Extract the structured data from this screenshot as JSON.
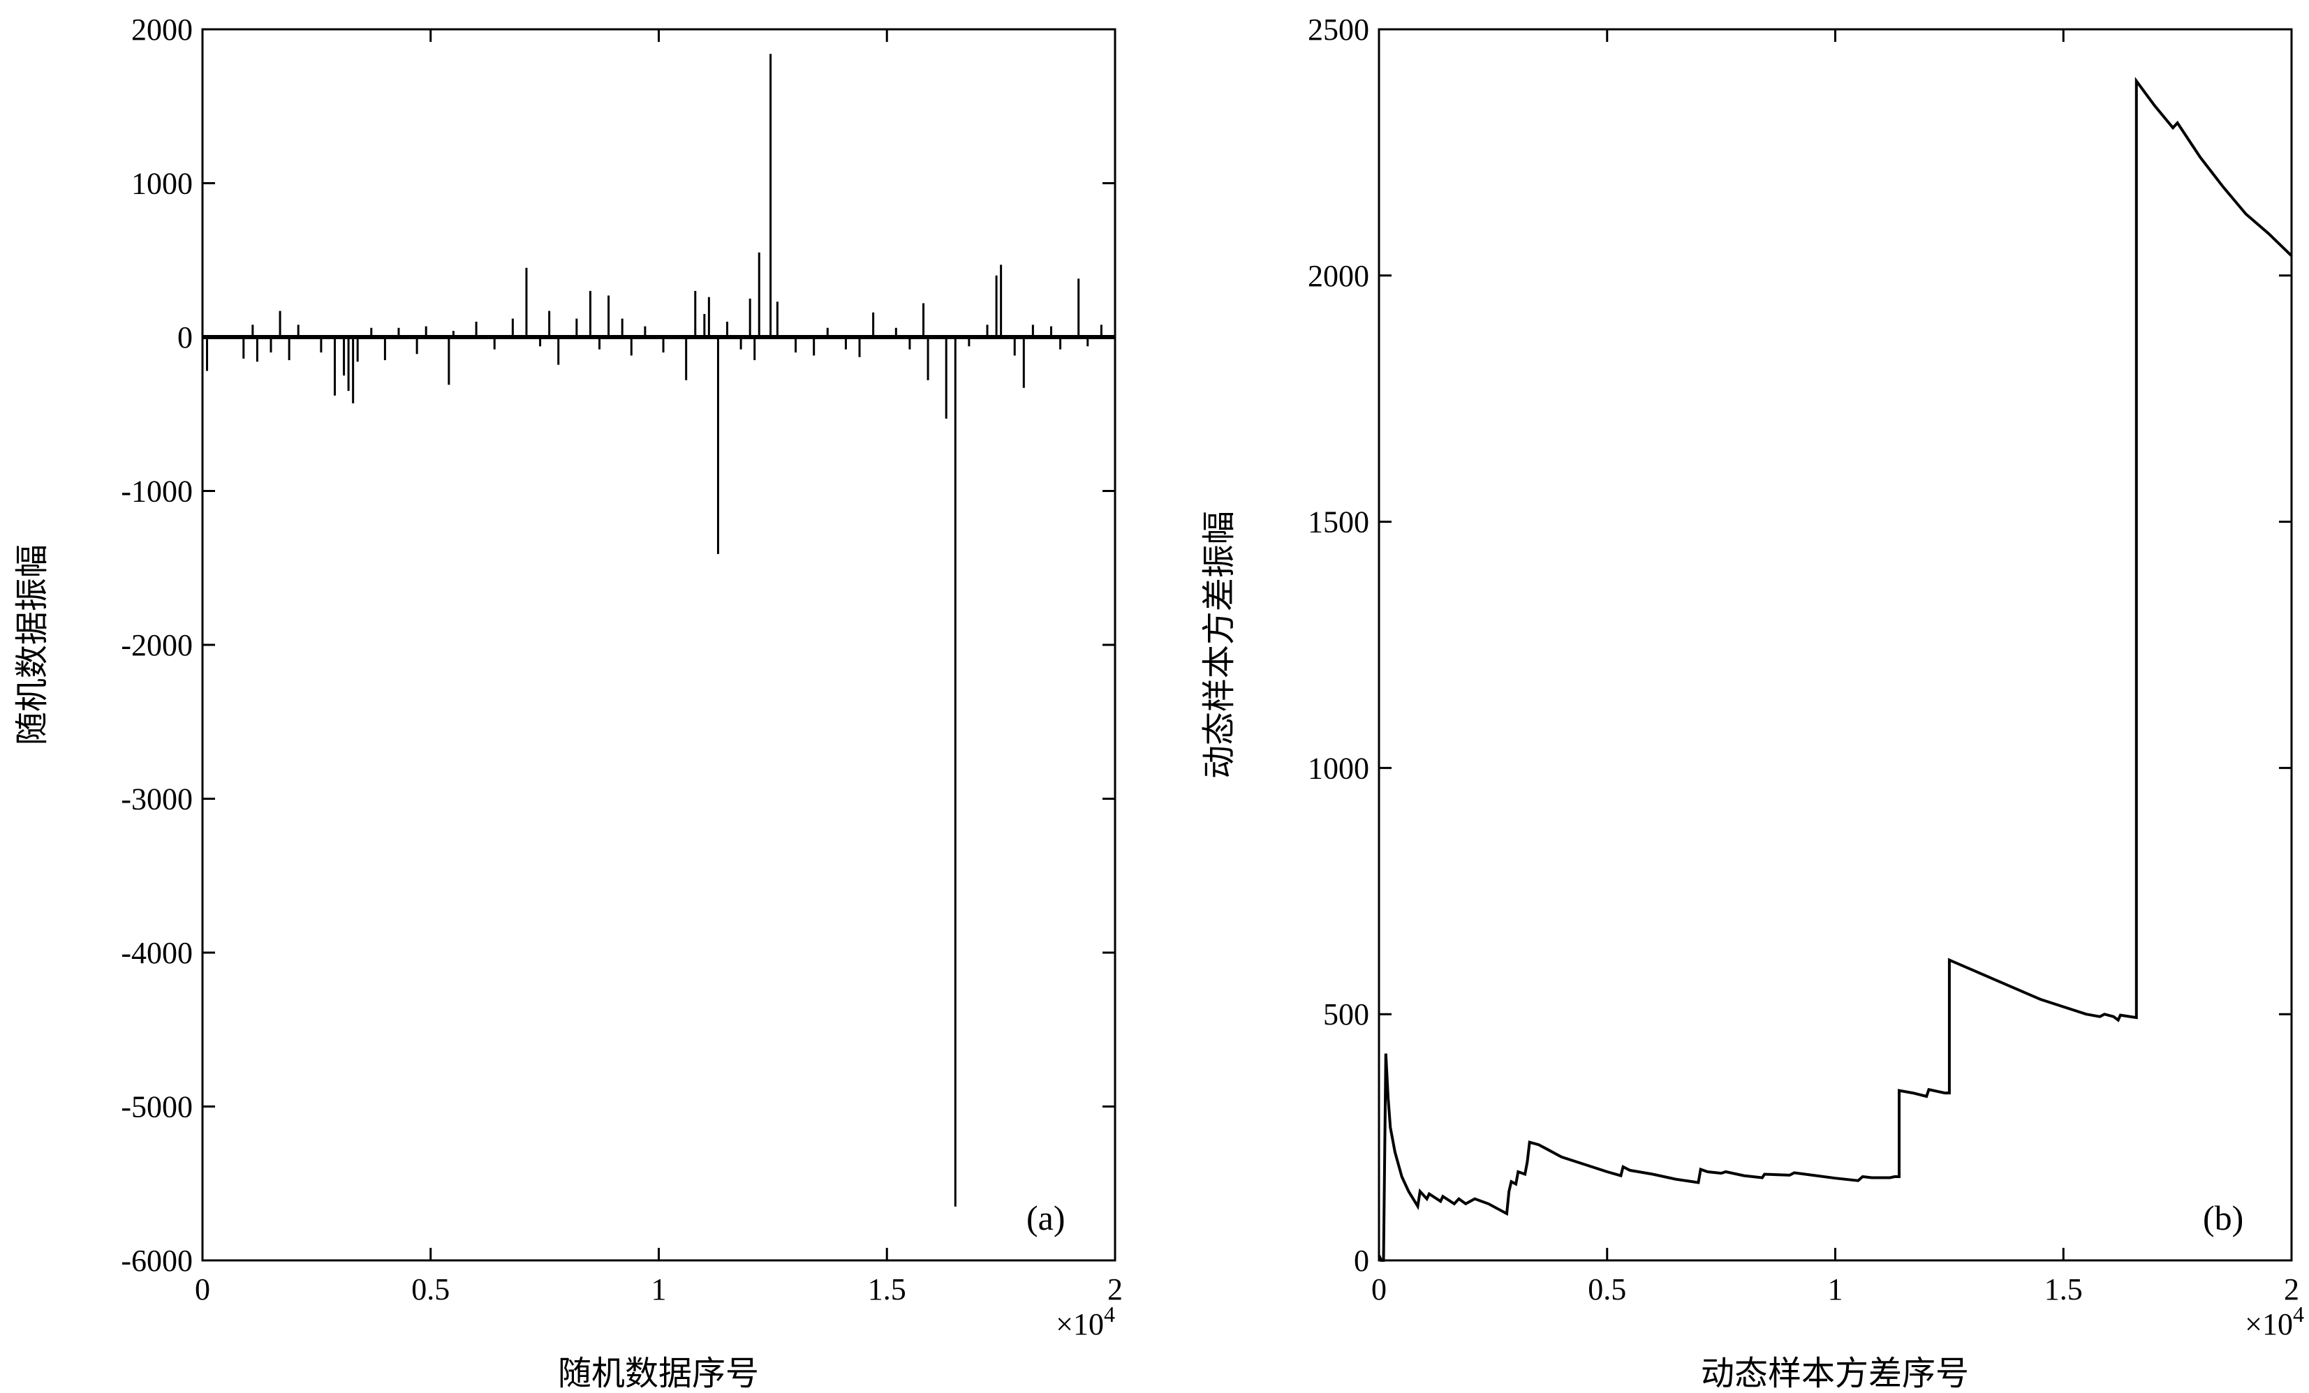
{
  "chart_data": [
    {
      "type": "line",
      "panel_label": "(a)",
      "xlabel": "随机数据序号",
      "ylabel": "随机数据振幅",
      "x_multiplier": "×10",
      "x_multiplier_exp": "4",
      "xlim": [
        0,
        2
      ],
      "ylim": [
        -6000,
        2000
      ],
      "x_ticks": [
        0,
        0.5,
        1,
        1.5,
        2
      ],
      "x_tick_labels": [
        "0",
        "0.5",
        "1",
        "1.5",
        "2"
      ],
      "y_ticks": [
        2000,
        1000,
        0,
        -1000,
        -2000,
        -3000,
        -4000,
        -5000,
        -6000
      ],
      "y_tick_labels": [
        "2000",
        "1000",
        "0",
        "-1000",
        "-2000",
        "-3000",
        "-4000",
        "-5000",
        "-6000"
      ],
      "grid": false,
      "baseline": 0,
      "spikes": [
        {
          "x": 0.01,
          "y": -220
        },
        {
          "x": 0.09,
          "y": -140
        },
        {
          "x": 0.11,
          "y": 80
        },
        {
          "x": 0.12,
          "y": -160
        },
        {
          "x": 0.15,
          "y": -100
        },
        {
          "x": 0.17,
          "y": 170
        },
        {
          "x": 0.19,
          "y": -150
        },
        {
          "x": 0.21,
          "y": 80
        },
        {
          "x": 0.26,
          "y": -100
        },
        {
          "x": 0.29,
          "y": -380
        },
        {
          "x": 0.31,
          "y": -250
        },
        {
          "x": 0.32,
          "y": -350
        },
        {
          "x": 0.33,
          "y": -430
        },
        {
          "x": 0.34,
          "y": -160
        },
        {
          "x": 0.37,
          "y": 60
        },
        {
          "x": 0.4,
          "y": -150
        },
        {
          "x": 0.43,
          "y": 60
        },
        {
          "x": 0.47,
          "y": -110
        },
        {
          "x": 0.49,
          "y": 70
        },
        {
          "x": 0.54,
          "y": -310
        },
        {
          "x": 0.55,
          "y": 40
        },
        {
          "x": 0.6,
          "y": 100
        },
        {
          "x": 0.64,
          "y": -80
        },
        {
          "x": 0.68,
          "y": 120
        },
        {
          "x": 0.71,
          "y": 450
        },
        {
          "x": 0.74,
          "y": -60
        },
        {
          "x": 0.76,
          "y": 170
        },
        {
          "x": 0.78,
          "y": -180
        },
        {
          "x": 0.82,
          "y": 120
        },
        {
          "x": 0.85,
          "y": 300
        },
        {
          "x": 0.87,
          "y": -80
        },
        {
          "x": 0.89,
          "y": 270
        },
        {
          "x": 0.92,
          "y": 120
        },
        {
          "x": 0.94,
          "y": -120
        },
        {
          "x": 0.97,
          "y": 70
        },
        {
          "x": 1.01,
          "y": -100
        },
        {
          "x": 1.06,
          "y": -280
        },
        {
          "x": 1.08,
          "y": 300
        },
        {
          "x": 1.1,
          "y": 150
        },
        {
          "x": 1.11,
          "y": 260
        },
        {
          "x": 1.13,
          "y": -1410
        },
        {
          "x": 1.15,
          "y": 100
        },
        {
          "x": 1.18,
          "y": -80
        },
        {
          "x": 1.2,
          "y": 250
        },
        {
          "x": 1.21,
          "y": -150
        },
        {
          "x": 1.22,
          "y": 550
        },
        {
          "x": 1.245,
          "y": 1840
        },
        {
          "x": 1.26,
          "y": 230
        },
        {
          "x": 1.3,
          "y": -100
        },
        {
          "x": 1.34,
          "y": -120
        },
        {
          "x": 1.37,
          "y": 60
        },
        {
          "x": 1.41,
          "y": -80
        },
        {
          "x": 1.44,
          "y": -130
        },
        {
          "x": 1.47,
          "y": 160
        },
        {
          "x": 1.52,
          "y": 60
        },
        {
          "x": 1.55,
          "y": -80
        },
        {
          "x": 1.58,
          "y": 220
        },
        {
          "x": 1.59,
          "y": -280
        },
        {
          "x": 1.63,
          "y": -530
        },
        {
          "x": 1.65,
          "y": -5650
        },
        {
          "x": 1.68,
          "y": -60
        },
        {
          "x": 1.72,
          "y": 80
        },
        {
          "x": 1.74,
          "y": 400
        },
        {
          "x": 1.75,
          "y": 470
        },
        {
          "x": 1.78,
          "y": -120
        },
        {
          "x": 1.8,
          "y": -330
        },
        {
          "x": 1.82,
          "y": 80
        },
        {
          "x": 1.86,
          "y": 70
        },
        {
          "x": 1.88,
          "y": -80
        },
        {
          "x": 1.92,
          "y": 380
        },
        {
          "x": 1.94,
          "y": -60
        },
        {
          "x": 1.97,
          "y": 80
        }
      ]
    },
    {
      "type": "line",
      "panel_label": "(b)",
      "xlabel": "动态样本方差序号",
      "ylabel": "动态样本方差振幅",
      "x_multiplier": "×10",
      "x_multiplier_exp": "4",
      "xlim": [
        0,
        2
      ],
      "ylim": [
        0,
        2500
      ],
      "x_ticks": [
        0,
        0.5,
        1,
        1.5,
        2
      ],
      "x_tick_labels": [
        "0",
        "0.5",
        "1",
        "1.5",
        "2"
      ],
      "y_ticks": [
        0,
        500,
        1000,
        1500,
        2000,
        2500
      ],
      "y_tick_labels": [
        "0",
        "500",
        "1000",
        "1500",
        "2000",
        "2500"
      ],
      "grid": false,
      "points": [
        [
          0.0,
          10
        ],
        [
          0.005,
          0
        ],
        [
          0.01,
          0
        ],
        [
          0.015,
          420
        ],
        [
          0.02,
          330
        ],
        [
          0.025,
          270
        ],
        [
          0.035,
          220
        ],
        [
          0.05,
          170
        ],
        [
          0.065,
          140
        ],
        [
          0.085,
          110
        ],
        [
          0.09,
          140
        ],
        [
          0.105,
          125
        ],
        [
          0.11,
          135
        ],
        [
          0.135,
          120
        ],
        [
          0.14,
          130
        ],
        [
          0.165,
          115
        ],
        [
          0.175,
          125
        ],
        [
          0.19,
          115
        ],
        [
          0.21,
          125
        ],
        [
          0.24,
          115
        ],
        [
          0.28,
          95
        ],
        [
          0.285,
          140
        ],
        [
          0.29,
          160
        ],
        [
          0.3,
          155
        ],
        [
          0.305,
          180
        ],
        [
          0.32,
          175
        ],
        [
          0.325,
          200
        ],
        [
          0.33,
          240
        ],
        [
          0.35,
          235
        ],
        [
          0.37,
          225
        ],
        [
          0.4,
          210
        ],
        [
          0.45,
          195
        ],
        [
          0.5,
          180
        ],
        [
          0.53,
          172
        ],
        [
          0.535,
          190
        ],
        [
          0.55,
          183
        ],
        [
          0.6,
          175
        ],
        [
          0.65,
          165
        ],
        [
          0.7,
          158
        ],
        [
          0.705,
          185
        ],
        [
          0.72,
          180
        ],
        [
          0.75,
          177
        ],
        [
          0.76,
          180
        ],
        [
          0.8,
          172
        ],
        [
          0.84,
          168
        ],
        [
          0.845,
          175
        ],
        [
          0.9,
          173
        ],
        [
          0.91,
          178
        ],
        [
          0.95,
          173
        ],
        [
          1.0,
          167
        ],
        [
          1.05,
          162
        ],
        [
          1.06,
          170
        ],
        [
          1.08,
          168
        ],
        [
          1.12,
          168
        ],
        [
          1.13,
          170
        ],
        [
          1.14,
          170
        ],
        [
          1.14,
          345
        ],
        [
          1.17,
          340
        ],
        [
          1.2,
          333
        ],
        [
          1.205,
          347
        ],
        [
          1.24,
          340
        ],
        [
          1.25,
          340
        ],
        [
          1.25,
          610
        ],
        [
          1.3,
          590
        ],
        [
          1.35,
          570
        ],
        [
          1.4,
          550
        ],
        [
          1.45,
          530
        ],
        [
          1.5,
          515
        ],
        [
          1.55,
          500
        ],
        [
          1.58,
          495
        ],
        [
          1.59,
          500
        ],
        [
          1.61,
          495
        ],
        [
          1.62,
          488
        ],
        [
          1.625,
          498
        ],
        [
          1.66,
          493
        ],
        [
          1.66,
          2395
        ],
        [
          1.7,
          2345
        ],
        [
          1.74,
          2300
        ],
        [
          1.75,
          2310
        ],
        [
          1.8,
          2240
        ],
        [
          1.85,
          2180
        ],
        [
          1.9,
          2125
        ],
        [
          1.95,
          2085
        ],
        [
          2.0,
          2040
        ]
      ]
    }
  ]
}
